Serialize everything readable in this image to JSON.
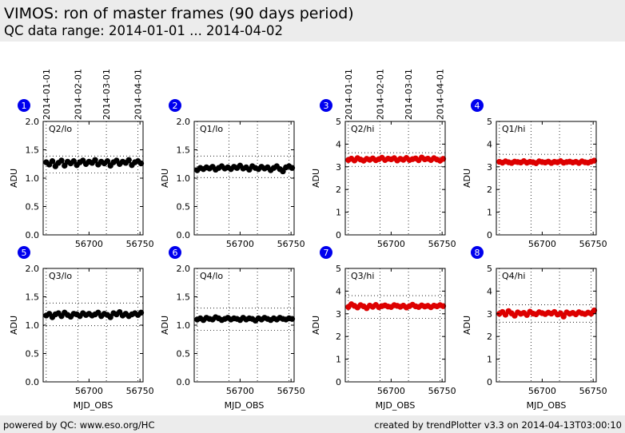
{
  "header": {
    "title": "VIMOS: ron of master frames (90 days period)",
    "subtitle": "QC data range: 2014-01-01 ... 2014-04-02"
  },
  "footer": {
    "left": "powered by QC: www.eso.org/HC",
    "right": "created by trendPlotter v3.3 on 2014-04-13T03:00:10"
  },
  "top_date_labels": [
    "2014-01-01",
    "2014-02-01",
    "2014-03-01",
    "2014-04-01"
  ],
  "colors": {
    "lo": "#000000",
    "hi": "#dd0000",
    "badge": "#0000ee"
  },
  "chart_data": [
    {
      "type": "line",
      "panel": "1",
      "label": "Q2/lo",
      "ylim": [
        0,
        2
      ],
      "yticks": [
        "0.0",
        "0.5",
        "1.0",
        "1.5",
        "2.0"
      ],
      "xlim": [
        56655,
        56753
      ],
      "xticks": [
        "56700",
        "56750"
      ],
      "ylabel": "ADU",
      "xlabel": "",
      "mean": 1.27,
      "upper": 1.39,
      "lower": 1.09,
      "series_color": "lo",
      "x": [
        56658,
        56661,
        56664,
        56667,
        56670,
        56673,
        56676,
        56679,
        56682,
        56685,
        56688,
        56691,
        56694,
        56697,
        56700,
        56703,
        56706,
        56709,
        56712,
        56715,
        56718,
        56721,
        56724,
        56727,
        56730,
        56733,
        56736,
        56739,
        56742,
        56745,
        56748,
        56751
      ],
      "y": [
        1.28,
        1.24,
        1.3,
        1.21,
        1.27,
        1.31,
        1.22,
        1.29,
        1.26,
        1.3,
        1.23,
        1.28,
        1.31,
        1.25,
        1.29,
        1.27,
        1.32,
        1.24,
        1.29,
        1.26,
        1.3,
        1.22,
        1.28,
        1.31,
        1.25,
        1.29,
        1.27,
        1.32,
        1.23,
        1.28,
        1.3,
        1.26
      ]
    },
    {
      "type": "line",
      "panel": "2",
      "label": "Q1/lo",
      "ylim": [
        0,
        2
      ],
      "yticks": [
        "0.0",
        "0.5",
        "1.0",
        "1.5",
        "2.0"
      ],
      "xlim": [
        56655,
        56753
      ],
      "xticks": [
        "56700",
        "56750"
      ],
      "ylabel": "ADU",
      "xlabel": "",
      "mean": 1.18,
      "upper": 1.39,
      "lower": 1.01,
      "series_color": "lo",
      "x": [
        56658,
        56661,
        56664,
        56667,
        56670,
        56673,
        56676,
        56679,
        56682,
        56685,
        56688,
        56691,
        56694,
        56697,
        56700,
        56703,
        56706,
        56709,
        56712,
        56715,
        56718,
        56721,
        56724,
        56727,
        56730,
        56733,
        56736,
        56739,
        56742,
        56745,
        56748,
        56751
      ],
      "y": [
        1.14,
        1.18,
        1.16,
        1.19,
        1.17,
        1.2,
        1.15,
        1.18,
        1.21,
        1.17,
        1.19,
        1.16,
        1.2,
        1.18,
        1.22,
        1.17,
        1.19,
        1.15,
        1.21,
        1.18,
        1.16,
        1.2,
        1.17,
        1.19,
        1.14,
        1.18,
        1.21,
        1.16,
        1.12,
        1.19,
        1.21,
        1.18
      ]
    },
    {
      "type": "line",
      "panel": "3",
      "label": "Q2/hi",
      "ylim": [
        0,
        5
      ],
      "yticks": [
        "0",
        "1",
        "2",
        "3",
        "4",
        "5"
      ],
      "xlim": [
        56655,
        56753
      ],
      "xticks": [
        "56700",
        "56750"
      ],
      "ylabel": "ADU",
      "xlabel": "",
      "mean": 3.33,
      "upper": 3.62,
      "lower": 3.02,
      "series_color": "hi",
      "x": [
        56658,
        56661,
        56664,
        56667,
        56670,
        56673,
        56676,
        56679,
        56682,
        56685,
        56688,
        56691,
        56694,
        56697,
        56700,
        56703,
        56706,
        56709,
        56712,
        56715,
        56718,
        56721,
        56724,
        56727,
        56730,
        56733,
        56736,
        56739,
        56742,
        56745,
        56748,
        56751
      ],
      "y": [
        3.3,
        3.36,
        3.28,
        3.38,
        3.32,
        3.27,
        3.35,
        3.31,
        3.37,
        3.29,
        3.34,
        3.4,
        3.3,
        3.36,
        3.33,
        3.38,
        3.28,
        3.35,
        3.31,
        3.39,
        3.3,
        3.34,
        3.37,
        3.29,
        3.41,
        3.33,
        3.36,
        3.3,
        3.38,
        3.32,
        3.27,
        3.35
      ]
    },
    {
      "type": "line",
      "panel": "4",
      "label": "Q1/hi",
      "ylim": [
        0,
        5
      ],
      "yticks": [
        "0",
        "1",
        "2",
        "3",
        "4",
        "5"
      ],
      "xlim": [
        56655,
        56753
      ],
      "xticks": [
        "56700",
        "56750"
      ],
      "ylabel": "ADU",
      "xlabel": "",
      "mean": 3.21,
      "upper": 3.55,
      "lower": 2.87,
      "series_color": "hi",
      "x": [
        56658,
        56661,
        56664,
        56667,
        56670,
        56673,
        56676,
        56679,
        56682,
        56685,
        56688,
        56691,
        56694,
        56697,
        56700,
        56703,
        56706,
        56709,
        56712,
        56715,
        56718,
        56721,
        56724,
        56727,
        56730,
        56733,
        56736,
        56739,
        56742,
        56745,
        56748,
        56751
      ],
      "y": [
        3.22,
        3.18,
        3.24,
        3.2,
        3.17,
        3.23,
        3.21,
        3.19,
        3.25,
        3.18,
        3.22,
        3.2,
        3.16,
        3.24,
        3.21,
        3.19,
        3.23,
        3.17,
        3.22,
        3.2,
        3.25,
        3.18,
        3.21,
        3.23,
        3.19,
        3.22,
        3.17,
        3.24,
        3.2,
        3.18,
        3.23,
        3.27
      ]
    },
    {
      "type": "line",
      "panel": "5",
      "label": "Q3/lo",
      "ylim": [
        0,
        2
      ],
      "yticks": [
        "0.0",
        "0.5",
        "1.0",
        "1.5",
        "2.0"
      ],
      "xlim": [
        56655,
        56753
      ],
      "xticks": [
        "56700",
        "56750"
      ],
      "ylabel": "ADU",
      "xlabel": "MJD_OBS",
      "mean": 1.19,
      "upper": 1.39,
      "lower": 0.99,
      "series_color": "lo",
      "x": [
        56658,
        56661,
        56664,
        56667,
        56670,
        56673,
        56676,
        56679,
        56682,
        56685,
        56688,
        56691,
        56694,
        56697,
        56700,
        56703,
        56706,
        56709,
        56712,
        56715,
        56718,
        56721,
        56724,
        56727,
        56730,
        56733,
        56736,
        56739,
        56742,
        56745,
        56748,
        56751
      ],
      "y": [
        1.17,
        1.2,
        1.14,
        1.19,
        1.21,
        1.16,
        1.22,
        1.18,
        1.15,
        1.2,
        1.19,
        1.16,
        1.21,
        1.18,
        1.2,
        1.17,
        1.19,
        1.22,
        1.16,
        1.2,
        1.18,
        1.14,
        1.21,
        1.19,
        1.23,
        1.17,
        1.2,
        1.16,
        1.19,
        1.21,
        1.18,
        1.22
      ]
    },
    {
      "type": "line",
      "panel": "6",
      "label": "Q4/lo",
      "ylim": [
        0,
        2
      ],
      "yticks": [
        "0.0",
        "0.5",
        "1.0",
        "1.5",
        "2.0"
      ],
      "xlim": [
        56655,
        56753
      ],
      "xticks": [
        "56700",
        "56750"
      ],
      "ylabel": "ADU",
      "xlabel": "MJD_OBS",
      "mean": 1.11,
      "upper": 1.3,
      "lower": 0.91,
      "series_color": "lo",
      "x": [
        56658,
        56661,
        56664,
        56667,
        56670,
        56673,
        56676,
        56679,
        56682,
        56685,
        56688,
        56691,
        56694,
        56697,
        56700,
        56703,
        56706,
        56709,
        56712,
        56715,
        56718,
        56721,
        56724,
        56727,
        56730,
        56733,
        56736,
        56739,
        56742,
        56745,
        56748,
        56751
      ],
      "y": [
        1.1,
        1.12,
        1.09,
        1.13,
        1.11,
        1.1,
        1.14,
        1.12,
        1.09,
        1.11,
        1.13,
        1.1,
        1.12,
        1.11,
        1.09,
        1.13,
        1.1,
        1.12,
        1.11,
        1.08,
        1.12,
        1.1,
        1.13,
        1.11,
        1.09,
        1.12,
        1.1,
        1.13,
        1.11,
        1.1,
        1.12,
        1.11
      ]
    },
    {
      "type": "line",
      "panel": "7",
      "label": "Q3/hi",
      "ylim": [
        0,
        5
      ],
      "yticks": [
        "0",
        "1",
        "2",
        "3",
        "4",
        "5"
      ],
      "xlim": [
        56655,
        56753
      ],
      "xticks": [
        "56700",
        "56750"
      ],
      "ylabel": "ADU",
      "xlabel": "MJD_OBS",
      "mean": 3.33,
      "upper": 3.8,
      "lower": 2.8,
      "series_color": "hi",
      "x": [
        56658,
        56661,
        56664,
        56667,
        56670,
        56673,
        56676,
        56679,
        56682,
        56685,
        56688,
        56691,
        56694,
        56697,
        56700,
        56703,
        56706,
        56709,
        56712,
        56715,
        56718,
        56721,
        56724,
        56727,
        56730,
        56733,
        56736,
        56739,
        56742,
        56745,
        56748,
        56751
      ],
      "y": [
        3.3,
        3.42,
        3.35,
        3.28,
        3.38,
        3.33,
        3.25,
        3.36,
        3.31,
        3.39,
        3.29,
        3.34,
        3.37,
        3.32,
        3.3,
        3.38,
        3.35,
        3.31,
        3.36,
        3.28,
        3.34,
        3.4,
        3.33,
        3.3,
        3.37,
        3.32,
        3.35,
        3.29,
        3.36,
        3.33,
        3.38,
        3.34
      ]
    },
    {
      "type": "line",
      "panel": "8",
      "label": "Q4/hi",
      "ylim": [
        0,
        5
      ],
      "yticks": [
        "0",
        "1",
        "2",
        "3",
        "4",
        "5"
      ],
      "xlim": [
        56655,
        56753
      ],
      "xticks": [
        "56700",
        "56750"
      ],
      "ylabel": "ADU",
      "xlabel": "MJD_OBS",
      "mean": 3.03,
      "upper": 3.4,
      "lower": 2.63,
      "series_color": "hi",
      "x": [
        56658,
        56661,
        56664,
        56667,
        56670,
        56673,
        56676,
        56679,
        56682,
        56685,
        56688,
        56691,
        56694,
        56697,
        56700,
        56703,
        56706,
        56709,
        56712,
        56715,
        56718,
        56721,
        56724,
        56727,
        56730,
        56733,
        56736,
        56739,
        56742,
        56745,
        56748,
        56751
      ],
      "y": [
        3.0,
        3.08,
        2.96,
        3.12,
        3.02,
        2.92,
        3.06,
        3.0,
        3.04,
        2.95,
        3.09,
        3.01,
        2.98,
        3.07,
        3.03,
        2.99,
        3.05,
        3.01,
        3.08,
        2.97,
        3.02,
        2.88,
        3.06,
        3.0,
        3.04,
        2.98,
        3.07,
        3.02,
        2.99,
        3.05,
        3.01,
        3.15
      ]
    }
  ]
}
